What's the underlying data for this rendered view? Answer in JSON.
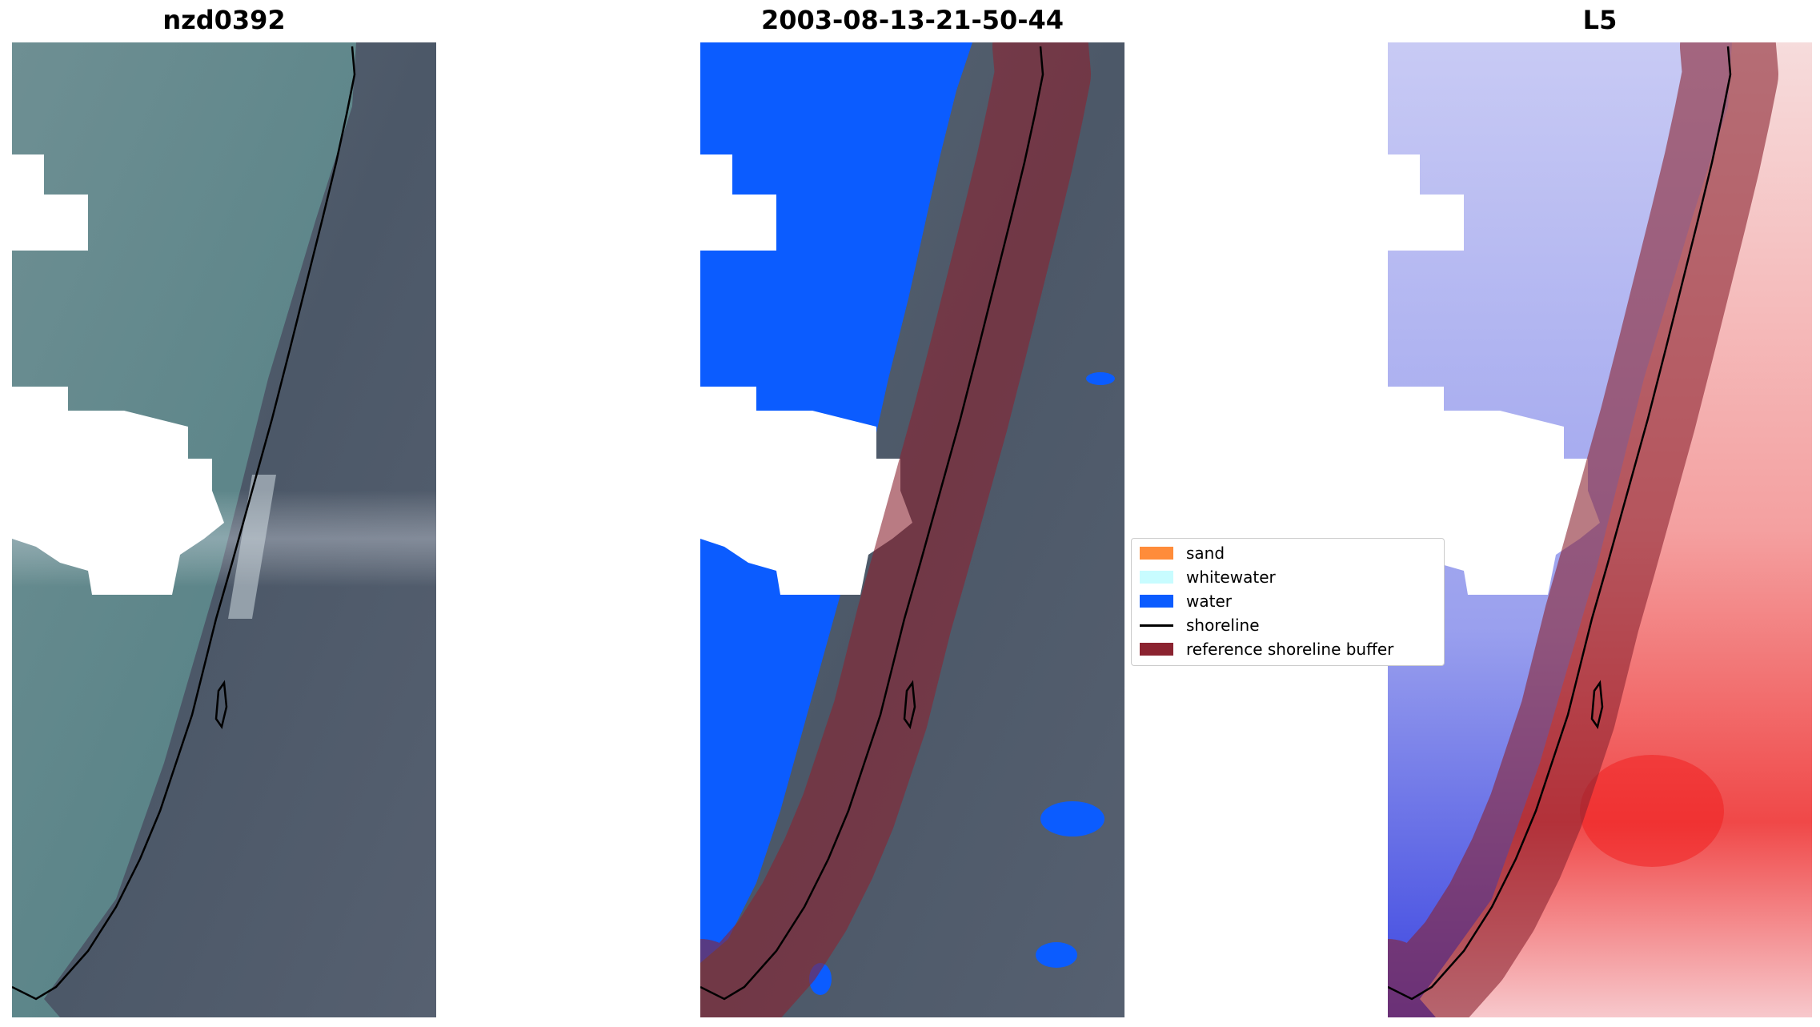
{
  "panels": [
    {
      "title": "nzd0392"
    },
    {
      "title": "2003-08-13-21-50-44"
    },
    {
      "title": "L5"
    }
  ],
  "legend": {
    "items": [
      {
        "label": "sand",
        "color": "#ff8c3a",
        "kind": "patch"
      },
      {
        "label": "whitewater",
        "color": "#c8fcff",
        "kind": "patch"
      },
      {
        "label": "water",
        "color": "#0b5cff",
        "kind": "patch"
      },
      {
        "label": "shoreline",
        "color": "#000000",
        "kind": "line"
      },
      {
        "label": "reference shoreline buffer",
        "color": "#8b2330",
        "kind": "patch"
      }
    ]
  },
  "colors": {
    "water_class": "#0b5cff",
    "buffer_overlay": "#8b2330",
    "cloud_mask": "#ffffff",
    "satellite_sea": "#5f8a8e",
    "satellite_land": "#4d5766"
  }
}
